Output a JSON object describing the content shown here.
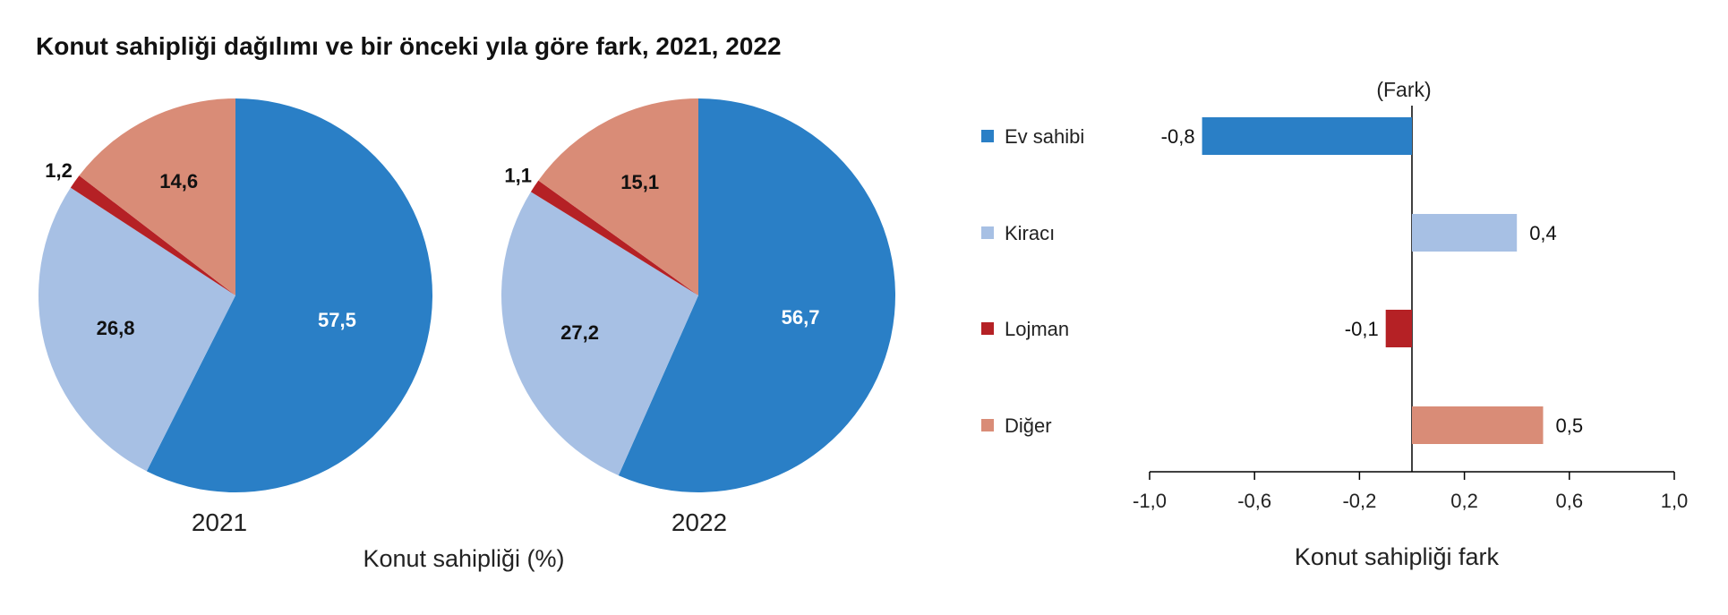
{
  "title": "Konut sahipliği dağılımı ve bir önceki yıla göre fark, 2021, 2022",
  "colors": {
    "ev_sahibi": "#2a7fc6",
    "kiraci": "#a7c0e4",
    "lojman": "#b52125",
    "diger": "#d98c77"
  },
  "chart_data": [
    {
      "type": "pie",
      "label": "2021",
      "slices": [
        {
          "category": "Ev sahibi",
          "value": 57.5,
          "label": "57,5"
        },
        {
          "category": "Kiracı",
          "value": 26.8,
          "label": "26,8"
        },
        {
          "category": "Lojman",
          "value": 1.2,
          "label": "1,2"
        },
        {
          "category": "Diğer",
          "value": 14.6,
          "label": "14,6"
        }
      ]
    },
    {
      "type": "pie",
      "label": "2022",
      "slices": [
        {
          "category": "Ev sahibi",
          "value": 56.7,
          "label": "56,7"
        },
        {
          "category": "Kiracı",
          "value": 27.2,
          "label": "27,2"
        },
        {
          "category": "Lojman",
          "value": 1.1,
          "label": "1,1"
        },
        {
          "category": "Diğer",
          "value": 15.1,
          "label": "15,1"
        }
      ],
      "xlabel": "Konut sahipliği (%)"
    },
    {
      "type": "bar",
      "orientation": "horizontal",
      "categories": [
        "Ev sahibi",
        "Kiracı",
        "Lojman",
        "Diğer"
      ],
      "values": [
        -0.8,
        0.4,
        -0.1,
        0.5
      ],
      "value_labels": [
        "-0,8",
        "0,4",
        "-0,1",
        "0,5"
      ],
      "axis_note": "(Fark)",
      "xlabel": "Konut sahipliği fark",
      "xlim": [
        -1.0,
        1.0
      ],
      "xticks": [
        -1.0,
        -0.6,
        -0.2,
        0.2,
        0.6,
        1.0
      ],
      "xtick_labels": [
        "-1,0",
        "-0,6",
        "-0,2",
        "0,2",
        "0,6",
        "1,0"
      ],
      "legend": [
        "Ev sahibi",
        "Kiracı",
        "Lojman",
        "Diğer"
      ],
      "legend_position": "left"
    }
  ]
}
